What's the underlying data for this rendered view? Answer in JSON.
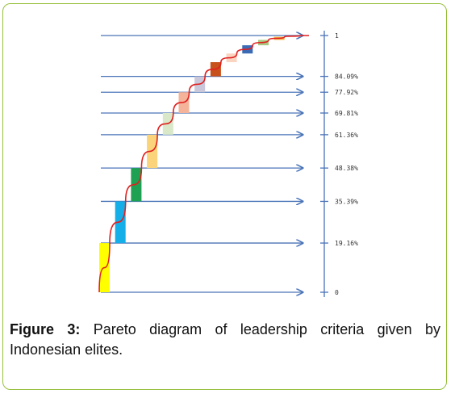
{
  "caption": {
    "label": "Figure 3:",
    "text": "Pareto diagram of leadership criteria given by Indonesian elites."
  },
  "chart_data": {
    "type": "pareto",
    "title": "",
    "xlabel": "",
    "ylabel": "",
    "ylim": [
      0,
      1
    ],
    "y_ticks": [
      {
        "value": 0,
        "label": "0"
      },
      {
        "value": 0.1916,
        "label": "19.16%"
      },
      {
        "value": 0.3539,
        "label": "35.39%"
      },
      {
        "value": 0.4838,
        "label": "48.38%"
      },
      {
        "value": 0.6136,
        "label": "61.36%"
      },
      {
        "value": 0.6981,
        "label": "69.81%"
      },
      {
        "value": 0.7792,
        "label": "77.92%"
      },
      {
        "value": 0.8409,
        "label": "84.09%"
      },
      {
        "value": 1,
        "label": "1"
      }
    ],
    "bars": [
      {
        "bottom": 0.0,
        "top": 0.1916,
        "color": "#ffff00"
      },
      {
        "bottom": 0.1916,
        "top": 0.3539,
        "color": "#14aee8"
      },
      {
        "bottom": 0.3539,
        "top": 0.4838,
        "color": "#1ea152"
      },
      {
        "bottom": 0.4838,
        "top": 0.6136,
        "color": "#fbd37a"
      },
      {
        "bottom": 0.6136,
        "top": 0.6981,
        "color": "#d9e8c8"
      },
      {
        "bottom": 0.6981,
        "top": 0.7792,
        "color": "#f5b49a"
      },
      {
        "bottom": 0.7792,
        "top": 0.8409,
        "color": "#c9c7d9"
      },
      {
        "bottom": 0.8409,
        "top": 0.8962,
        "color": "#c8501a"
      },
      {
        "bottom": 0.8962,
        "top": 0.93,
        "color": "#fad4c0"
      },
      {
        "bottom": 0.93,
        "top": 0.962,
        "color": "#3a6bb4"
      },
      {
        "bottom": 0.962,
        "top": 0.983,
        "color": "#a8c880"
      },
      {
        "bottom": 0.983,
        "top": 0.995,
        "color": "#f4b540"
      },
      {
        "bottom": 0.995,
        "top": 1.0,
        "color": "#e8d0a8"
      }
    ],
    "cumulative_curve_color": "#e02020",
    "arrow_color": "#4a74b8"
  }
}
